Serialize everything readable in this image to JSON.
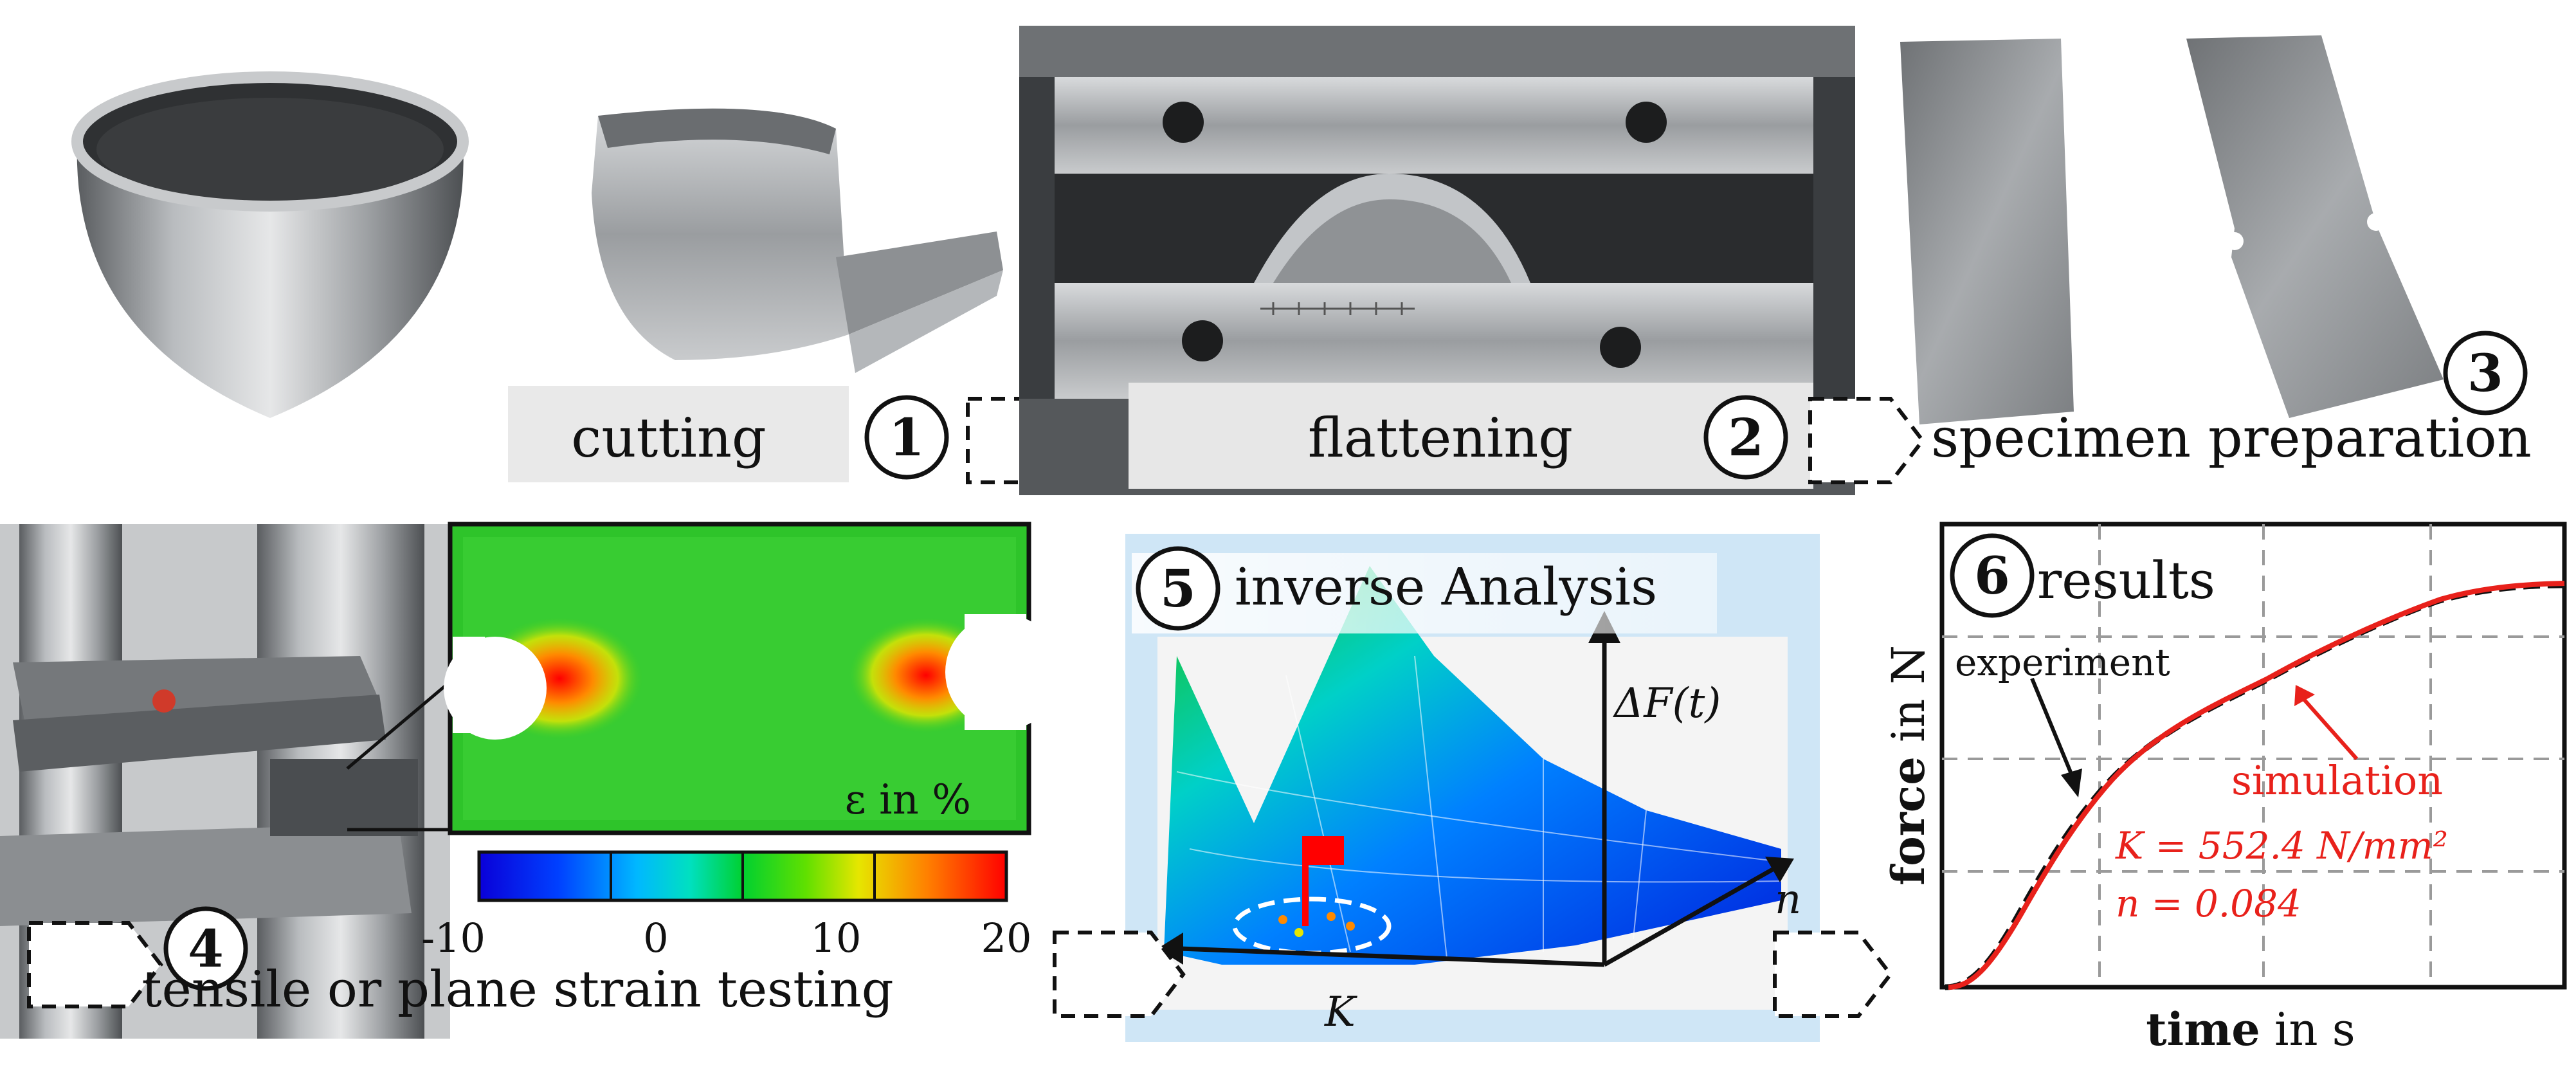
{
  "steps": [
    {
      "number": "1",
      "label": "cutting"
    },
    {
      "number": "2",
      "label": "flattening"
    },
    {
      "number": "3",
      "label": "specimen preparation"
    },
    {
      "number": "4",
      "label": "tensile or plane strain testing"
    },
    {
      "number": "5",
      "label": "inverse Analysis"
    },
    {
      "number": "6",
      "label": "results"
    }
  ],
  "dic": {
    "legend_label": "ε in %",
    "colorbar_ticks": [
      "-10",
      "0",
      "10",
      "20"
    ]
  },
  "analysis": {
    "z_label": "ΔF(t)",
    "x_label": "K",
    "y_label": "n"
  },
  "results": {
    "ylabel_bold": "force",
    "ylabel_rest": " in N",
    "xlabel_bold": "time",
    "xlabel_rest": " in s",
    "experiment_label": "experiment",
    "simulation_label": "simulation",
    "param_k": "K = 552.4 N/mm²",
    "param_n": "n = 0.084",
    "colors": {
      "simulation": "#e8211b",
      "experiment": "#111111"
    }
  }
}
